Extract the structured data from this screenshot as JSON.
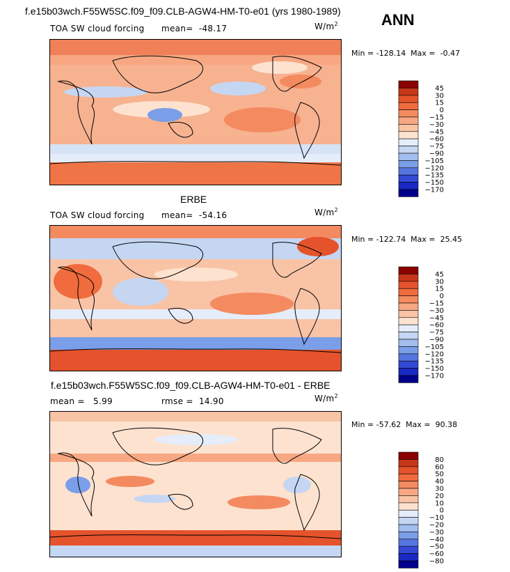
{
  "season": "ANN",
  "panels": [
    {
      "title": "f.e15b03wch.F55W5SC.f09_f09.CLB-AGW4-HM-T0-e01 (yrs 1980-1989)",
      "field": "TOA SW cloud forcing",
      "stat1": "mean=  -48.17",
      "stat2": "",
      "units": "W/m",
      "units_exp": "2",
      "minmax": "Min = -128.14  Max =  -0.47"
    },
    {
      "title": "ERBE",
      "field": "TOA SW cloud forcing",
      "stat1": "mean=  -54.16",
      "stat2": "",
      "units": "W/m",
      "units_exp": "2",
      "minmax": "Min = -122.74  Max =  25.45"
    },
    {
      "title": "f.e15b03wch.F55W5SC.f09_f09.CLB-AGW4-HM-T0-e01 - ERBE",
      "field": "",
      "stat1": "mean =   5.99",
      "stat2": "rmse =  14.90",
      "units": "W/m",
      "units_exp": "2",
      "minmax": "Min = -57.62  Max =  90.38"
    }
  ],
  "chart_data": [
    {
      "type": "heatmap",
      "title": "f.e15b03wch.F55W5SC.f09_f09.CLB-AGW4-HM-T0-e01 (yrs 1980-1989)",
      "variable": "TOA SW cloud forcing",
      "mean": -48.17,
      "min": -128.14,
      "max": -0.47,
      "colorbar_levels": [
        45,
        30,
        15,
        0,
        -15,
        -30,
        -45,
        -60,
        -75,
        -90,
        -105,
        -120,
        -135,
        -150,
        -170
      ],
      "colors": [
        "#8b0000",
        "#c8361a",
        "#e4532c",
        "#f06c3e",
        "#f48a60",
        "#f7a882",
        "#f9c3a6",
        "#fde2cf",
        "#e4edf9",
        "#c5d6f3",
        "#a2bdee",
        "#7b9ee8",
        "#5575df",
        "#3349d5",
        "#1a28c4",
        "#00008b"
      ]
    },
    {
      "type": "heatmap",
      "title": "ERBE",
      "variable": "TOA SW cloud forcing",
      "mean": -54.16,
      "min": -122.74,
      "max": 25.45,
      "colorbar_levels": [
        45,
        30,
        15,
        0,
        -15,
        -30,
        -45,
        -60,
        -75,
        -90,
        -105,
        -120,
        -135,
        -150,
        -170
      ],
      "colors": [
        "#8b0000",
        "#c8361a",
        "#e4532c",
        "#f06c3e",
        "#f48a60",
        "#f7a882",
        "#f9c3a6",
        "#fde2cf",
        "#e4edf9",
        "#c5d6f3",
        "#a2bdee",
        "#7b9ee8",
        "#5575df",
        "#3349d5",
        "#1a28c4",
        "#00008b"
      ]
    },
    {
      "type": "heatmap",
      "title": "f.e15b03wch.F55W5SC.f09_f09.CLB-AGW4-HM-T0-e01 - ERBE",
      "mean": 5.99,
      "rmse": 14.9,
      "min": -57.62,
      "max": 90.38,
      "colorbar_levels": [
        80,
        60,
        50,
        40,
        30,
        20,
        10,
        0,
        -10,
        -20,
        -30,
        -40,
        -50,
        -60,
        -80
      ],
      "colors": [
        "#8b0000",
        "#c8361a",
        "#e4532c",
        "#f06c3e",
        "#f48a60",
        "#f7a882",
        "#f9c3a6",
        "#fde2cf",
        "#e4edf9",
        "#c5d6f3",
        "#a2bdee",
        "#7b9ee8",
        "#5575df",
        "#3349d5",
        "#1a28c4",
        "#00008b"
      ]
    }
  ]
}
